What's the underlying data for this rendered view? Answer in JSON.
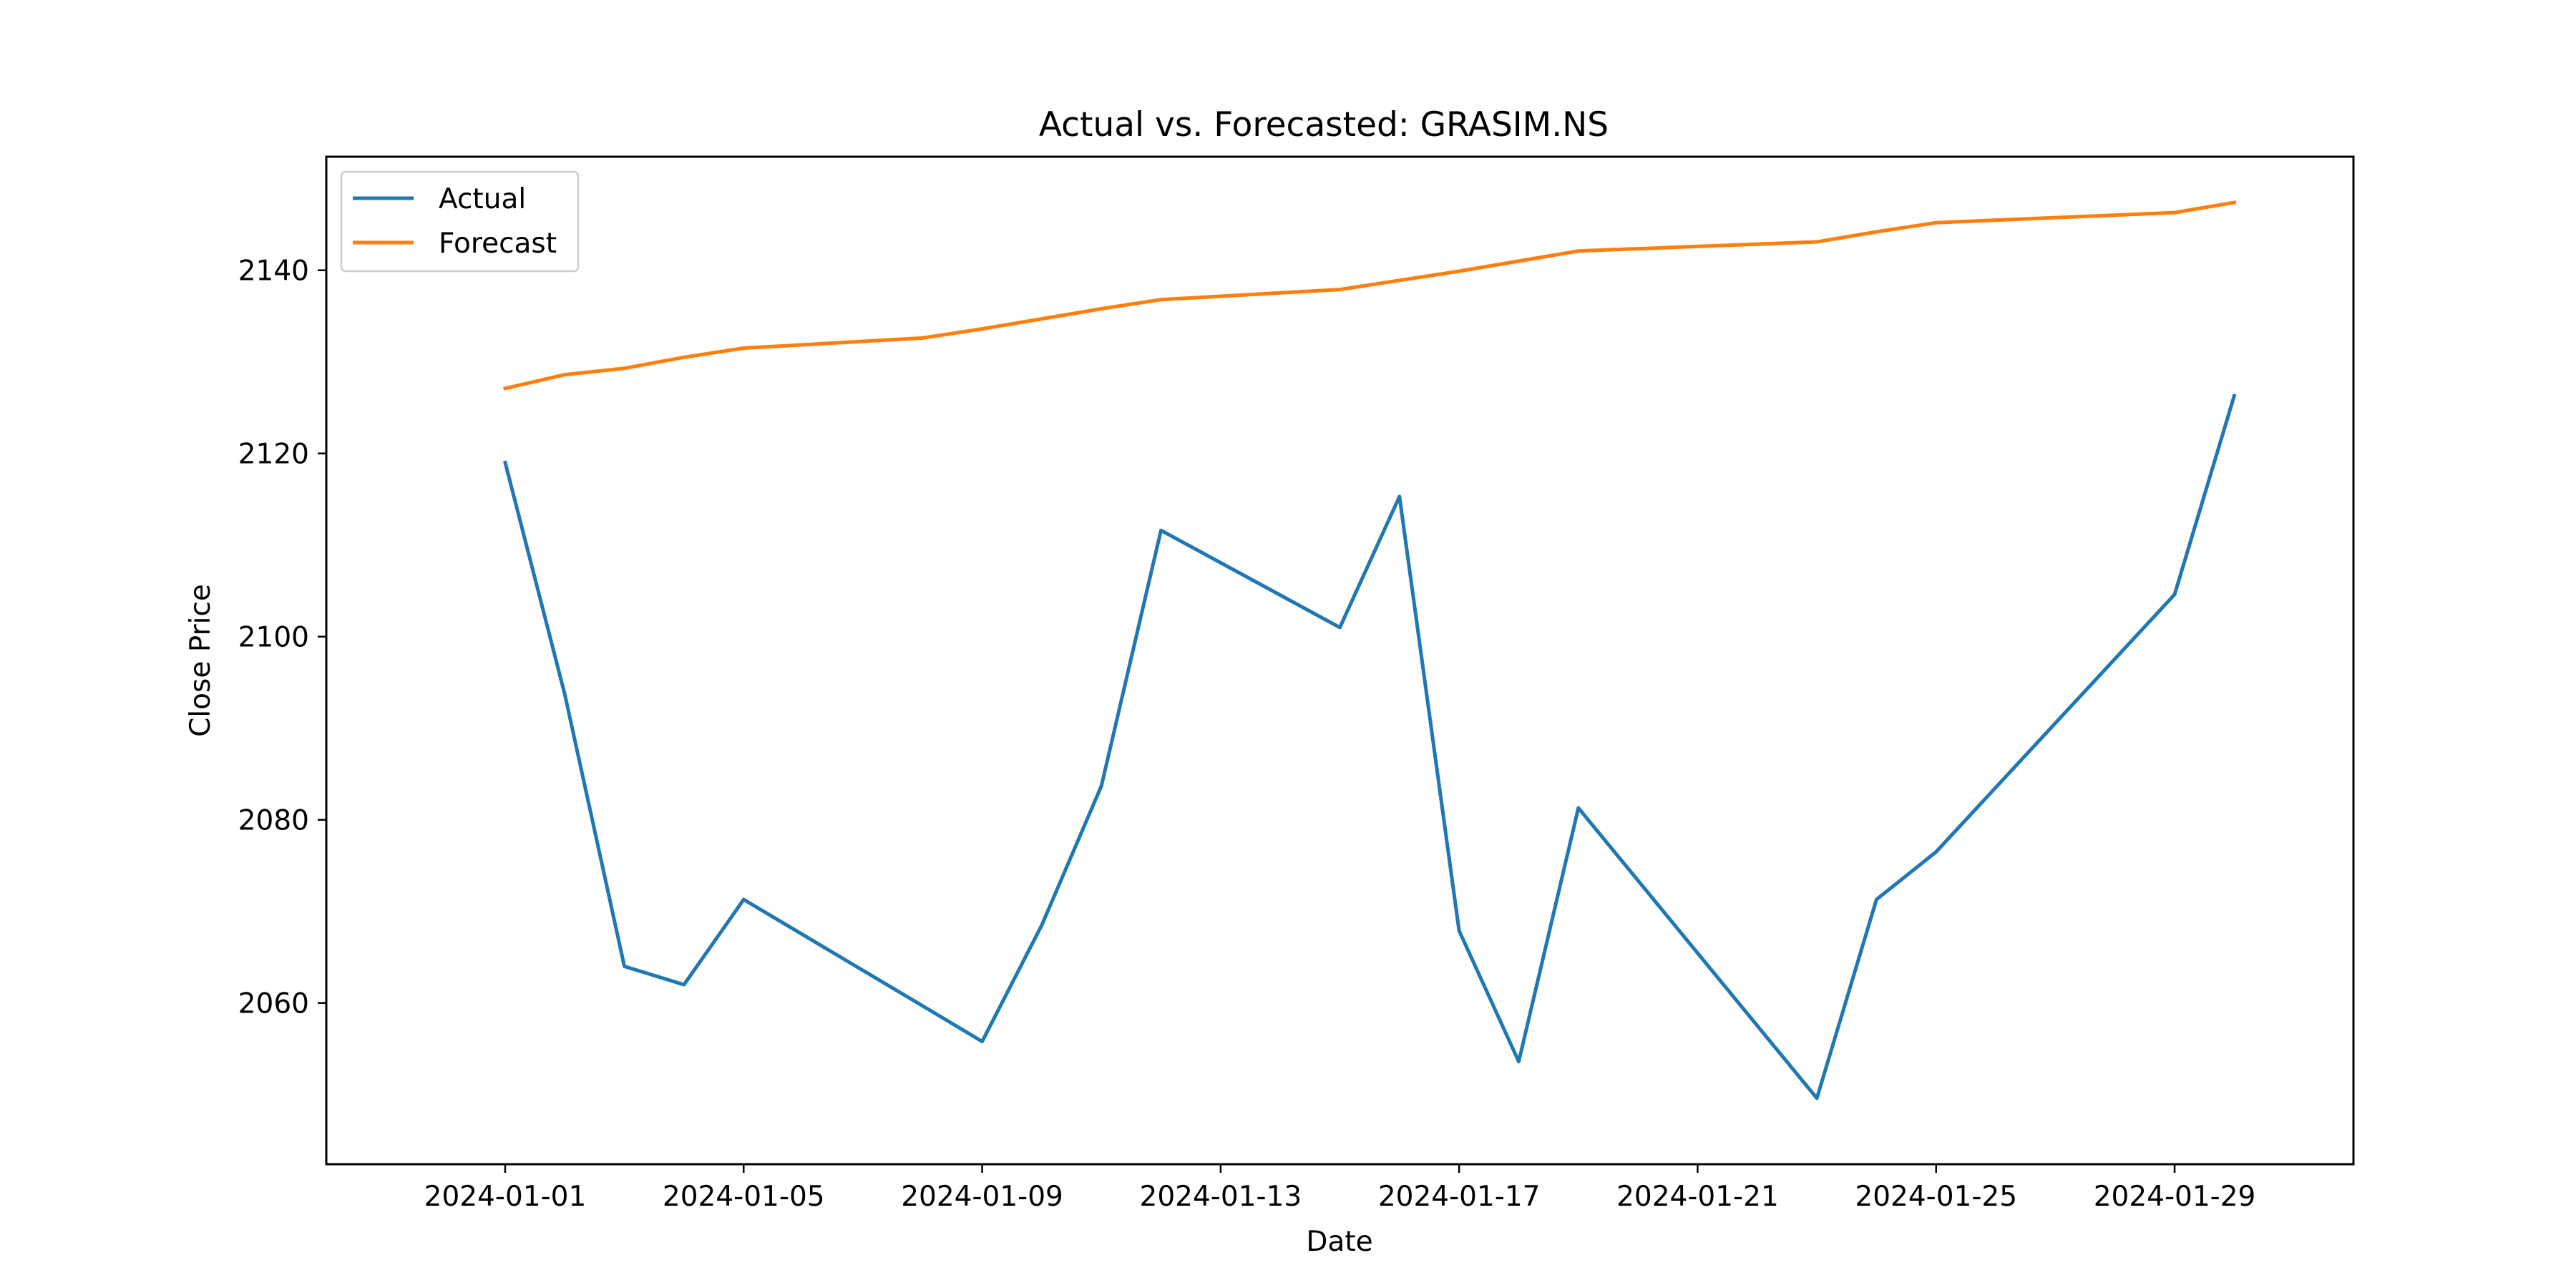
{
  "chart_data": {
    "type": "line",
    "title": "Actual vs. Forecasted: GRASIM.NS",
    "xlabel": "Date",
    "ylabel": "Close Price",
    "xlim": [
      "2023-12-29",
      "2024-02-01"
    ],
    "ylim": [
      2042.4,
      2152.4
    ],
    "x_ticks": [
      "2024-01-01",
      "2024-01-05",
      "2024-01-09",
      "2024-01-13",
      "2024-01-17",
      "2024-01-21",
      "2024-01-25",
      "2024-01-29"
    ],
    "y_ticks": [
      2060,
      2080,
      2100,
      2120,
      2140
    ],
    "grid": false,
    "legend": "upper left",
    "series": [
      {
        "name": "Actual",
        "color": "#1f77b4",
        "x": [
          "2024-01-01",
          "2024-01-02",
          "2024-01-03",
          "2024-01-04",
          "2024-01-05",
          "2024-01-08",
          "2024-01-09",
          "2024-01-10",
          "2024-01-11",
          "2024-01-12",
          "2024-01-15",
          "2024-01-16",
          "2024-01-17",
          "2024-01-18",
          "2024-01-19",
          "2024-01-23",
          "2024-01-24",
          "2024-01-25",
          "2024-01-29",
          "2024-01-30"
        ],
        "values": [
          2119.0,
          2093.7,
          2064.0,
          2062.0,
          2071.3,
          2059.7,
          2055.8,
          2068.5,
          2083.7,
          2111.6,
          2101.0,
          2115.3,
          2067.9,
          2053.6,
          2081.3,
          2049.6,
          2071.3,
          2076.5,
          2104.6,
          2126.3
        ]
      },
      {
        "name": "Forecast",
        "color": "#ff7f0e",
        "x": [
          "2024-01-01",
          "2024-01-02",
          "2024-01-03",
          "2024-01-04",
          "2024-01-05",
          "2024-01-08",
          "2024-01-09",
          "2024-01-10",
          "2024-01-11",
          "2024-01-12",
          "2024-01-15",
          "2024-01-16",
          "2024-01-17",
          "2024-01-18",
          "2024-01-19",
          "2024-01-23",
          "2024-01-24",
          "2024-01-25",
          "2024-01-29",
          "2024-01-30"
        ],
        "values": [
          2127.1,
          2128.6,
          2129.3,
          2130.5,
          2131.5,
          2132.6,
          2133.6,
          2134.7,
          2135.8,
          2136.8,
          2137.9,
          2138.9,
          2139.9,
          2141.0,
          2142.1,
          2143.1,
          2144.2,
          2145.2,
          2146.3,
          2147.4
        ]
      }
    ]
  }
}
